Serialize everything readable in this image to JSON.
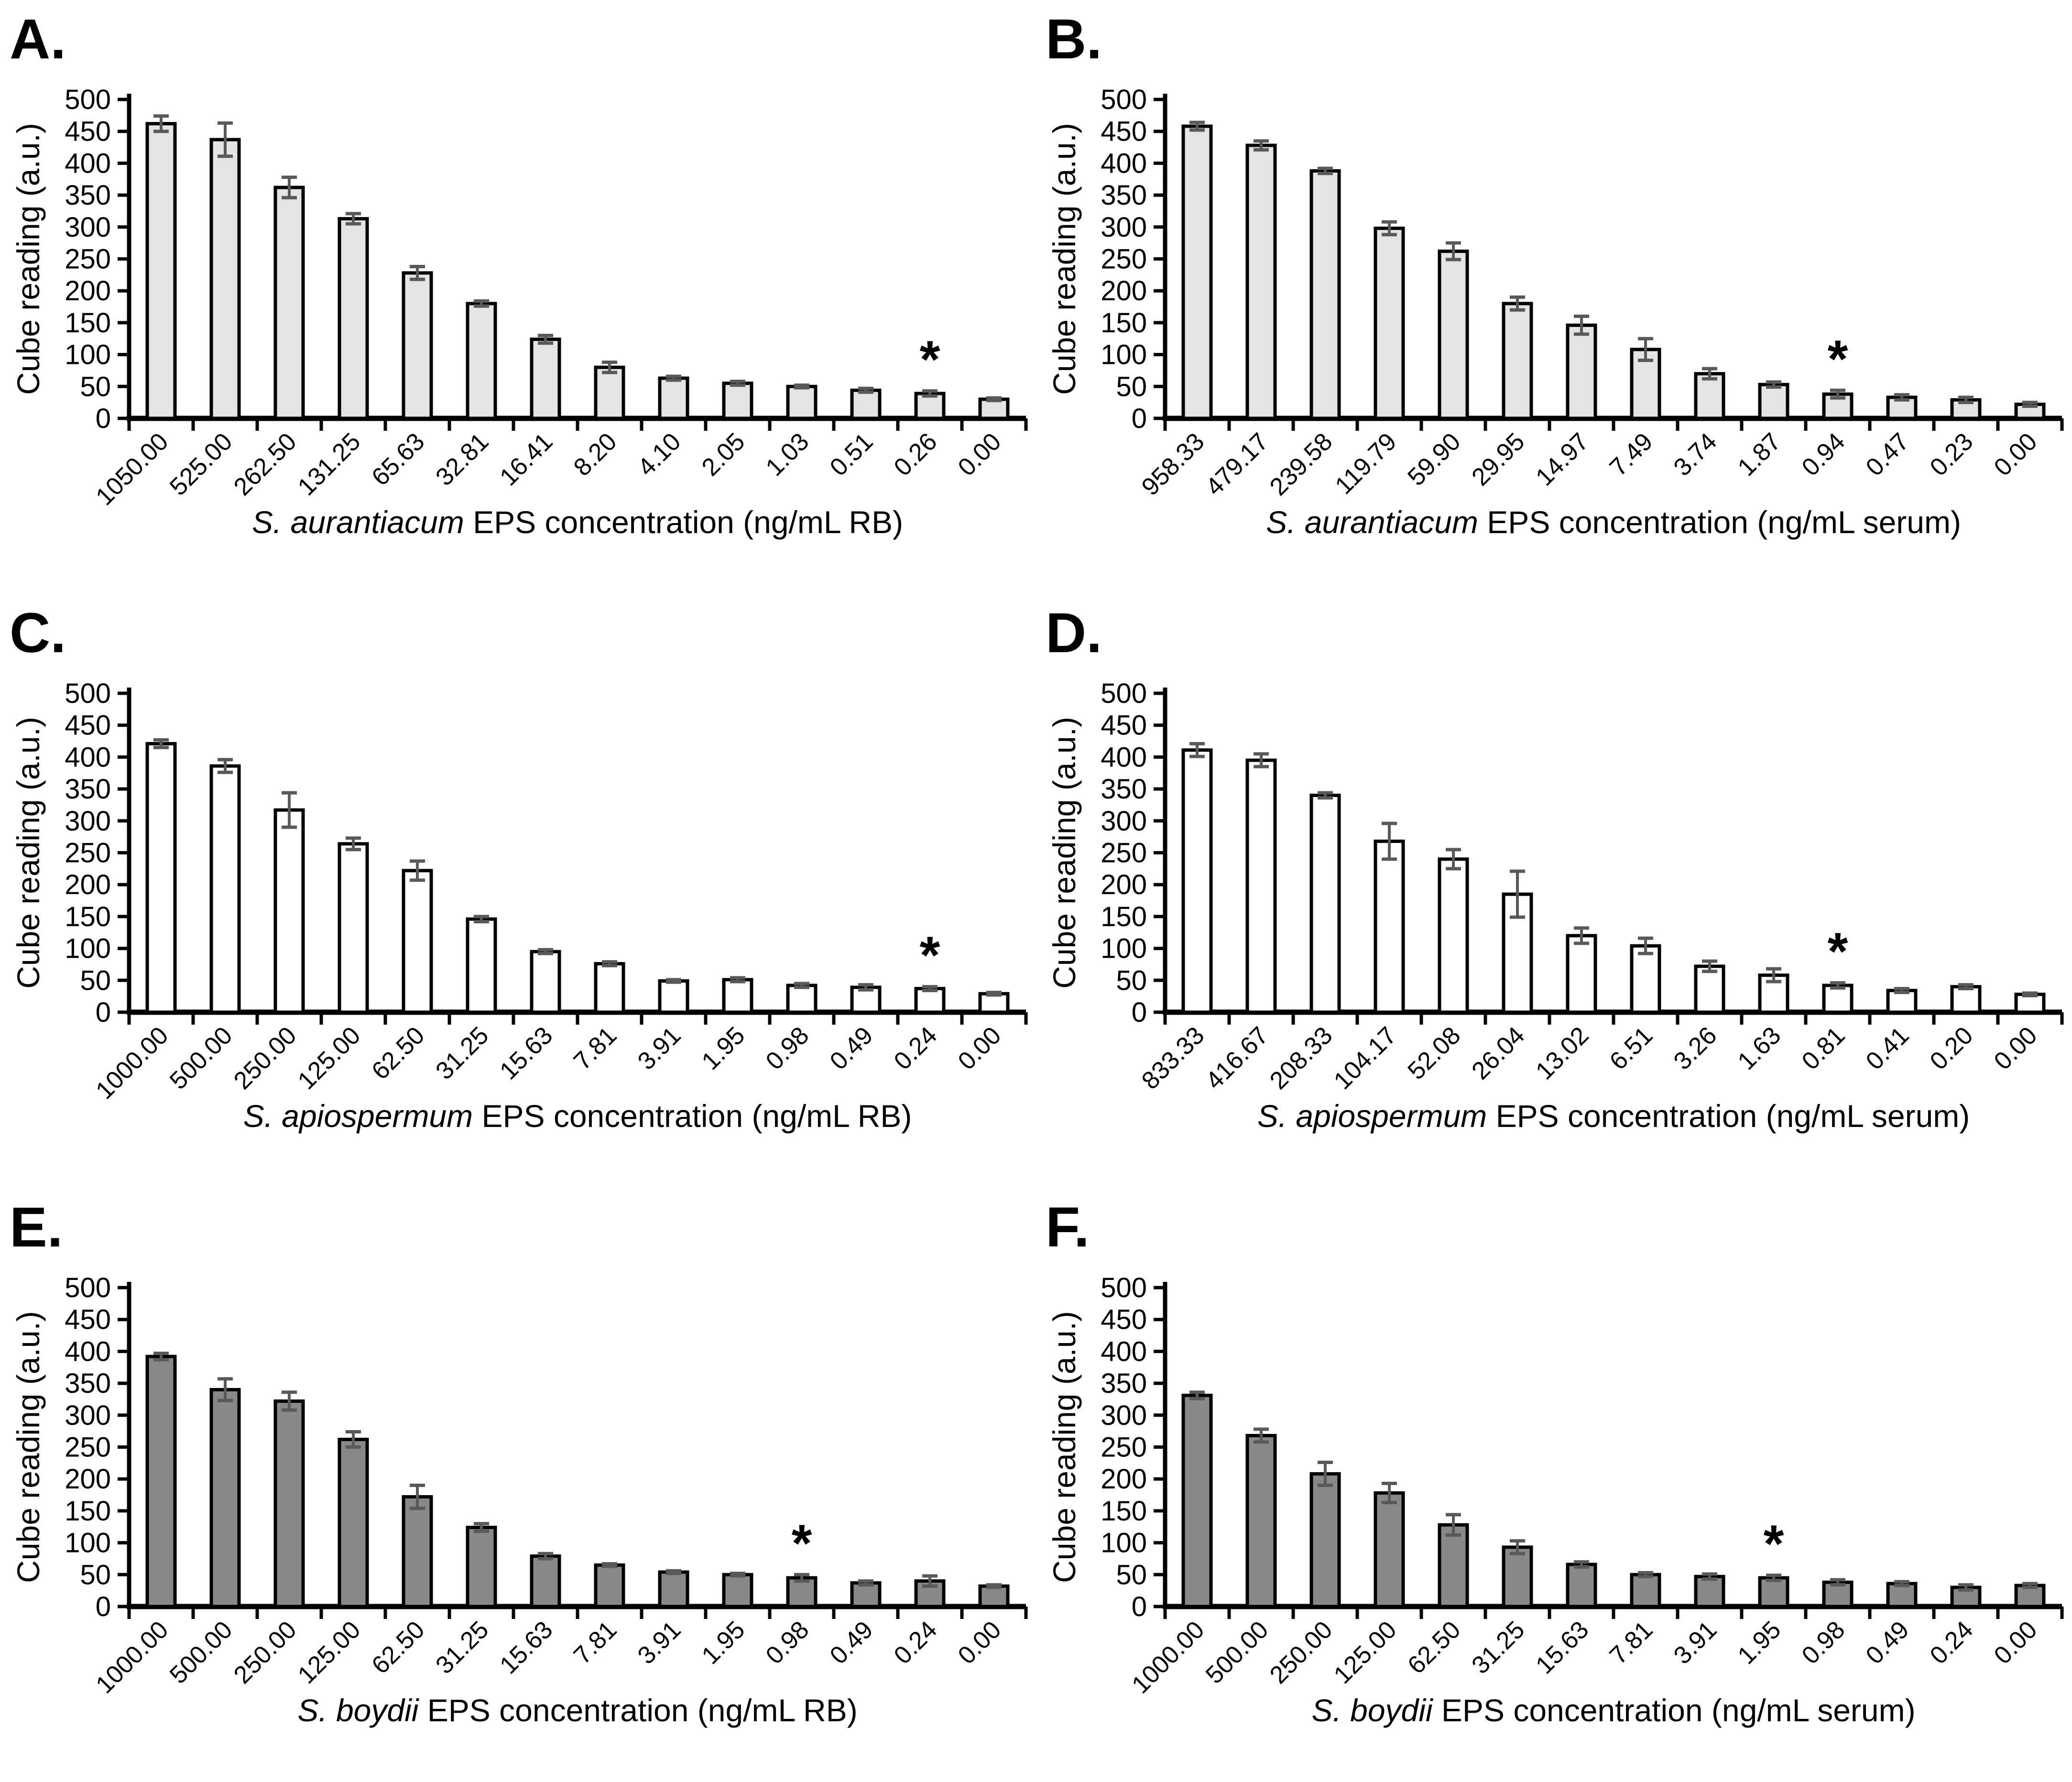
{
  "figure_background": "#ffffff",
  "significance_marker": "*",
  "axis_color": "#000000",
  "error_bar_color": "#595959",
  "chart_data": [
    {
      "panel_letter": "A.",
      "type": "bar",
      "ylabel": "Cube reading (a.u.)",
      "xlabel_species": "S. aurantiacum",
      "xlabel_rest": " EPS concentration (ng/mL RB)",
      "ylim": [
        0,
        500
      ],
      "ytick_step": 50,
      "grid": false,
      "legend": "none",
      "bar_fill": "#e4e4e4",
      "categories": [
        "1050.00",
        "525.00",
        "262.50",
        "131.25",
        "65.63",
        "32.81",
        "16.41",
        "8.20",
        "4.10",
        "2.05",
        "1.03",
        "0.51",
        "0.26",
        "0.00"
      ],
      "values": [
        462,
        437,
        362,
        313,
        228,
        180,
        124,
        80,
        63,
        55,
        50,
        44,
        39,
        30
      ],
      "errors": [
        12,
        26,
        16,
        8,
        10,
        4,
        6,
        8,
        3,
        3,
        2,
        3,
        4,
        2
      ],
      "asterisk_index": 12
    },
    {
      "panel_letter": "B.",
      "type": "bar",
      "ylabel": "Cube reading (a.u.)",
      "xlabel_species": "S. aurantiacum",
      "xlabel_rest": " EPS concentration (ng/mL serum)",
      "ylim": [
        0,
        500
      ],
      "ytick_step": 50,
      "grid": false,
      "legend": "none",
      "bar_fill": "#e4e4e4",
      "categories": [
        "958.33",
        "479.17",
        "239.58",
        "119.79",
        "59.90",
        "29.95",
        "14.97",
        "7.49",
        "3.74",
        "1.87",
        "0.94",
        "0.47",
        "0.23",
        "0.00"
      ],
      "values": [
        458,
        428,
        388,
        298,
        262,
        180,
        146,
        108,
        70,
        53,
        38,
        33,
        29,
        22
      ],
      "errors": [
        6,
        7,
        4,
        10,
        13,
        10,
        14,
        17,
        8,
        4,
        6,
        4,
        4,
        3
      ],
      "asterisk_index": 10
    },
    {
      "panel_letter": "C.",
      "type": "bar",
      "ylabel": "Cube reading (a.u.)",
      "xlabel_species": "S. apiospermum",
      "xlabel_rest": " EPS concentration (ng/mL RB)",
      "ylim": [
        0,
        500
      ],
      "ytick_step": 50,
      "grid": false,
      "legend": "none",
      "bar_fill": "#ffffff",
      "categories": [
        "1000.00",
        "500.00",
        "250.00",
        "125.00",
        "62.50",
        "31.25",
        "15.63",
        "7.81",
        "3.91",
        "1.95",
        "0.98",
        "0.49",
        "0.24",
        "0.00"
      ],
      "values": [
        421,
        386,
        317,
        264,
        222,
        146,
        95,
        76,
        49,
        51,
        42,
        39,
        37,
        29
      ],
      "errors": [
        6,
        10,
        27,
        9,
        15,
        4,
        3,
        3,
        2,
        3,
        3,
        4,
        3,
        2
      ],
      "asterisk_index": 12
    },
    {
      "panel_letter": "D.",
      "type": "bar",
      "ylabel": "Cube reading (a.u.)",
      "xlabel_species": "S. apiospermum",
      "xlabel_rest": " EPS concentration (ng/mL serum)",
      "ylim": [
        0,
        500
      ],
      "ytick_step": 50,
      "grid": false,
      "legend": "none",
      "bar_fill": "#ffffff",
      "categories": [
        "833.33",
        "416.67",
        "208.33",
        "104.17",
        "52.08",
        "26.04",
        "13.02",
        "6.51",
        "3.26",
        "1.63",
        "0.81",
        "0.41",
        "0.20",
        "0.00"
      ],
      "values": [
        411,
        395,
        340,
        268,
        240,
        185,
        120,
        104,
        72,
        58,
        42,
        34,
        40,
        28
      ],
      "errors": [
        10,
        10,
        4,
        28,
        15,
        36,
        12,
        12,
        8,
        10,
        4,
        3,
        3,
        2
      ],
      "asterisk_index": 10
    },
    {
      "panel_letter": "E.",
      "type": "bar",
      "ylabel": "Cube reading (a.u.)",
      "xlabel_species": "S. boydii",
      "xlabel_rest": " EPS concentration (ng/mL RB)",
      "ylim": [
        0,
        500
      ],
      "ytick_step": 50,
      "grid": false,
      "legend": "none",
      "bar_fill": "#888888",
      "categories": [
        "1000.00",
        "500.00",
        "250.00",
        "125.00",
        "62.50",
        "31.25",
        "15.63",
        "7.81",
        "3.91",
        "1.95",
        "0.98",
        "0.49",
        "0.24",
        "0.00"
      ],
      "values": [
        392,
        340,
        322,
        262,
        172,
        124,
        79,
        65,
        54,
        50,
        45,
        37,
        40,
        32
      ],
      "errors": [
        5,
        17,
        14,
        12,
        18,
        6,
        4,
        2,
        2,
        2,
        5,
        3,
        8,
        2
      ],
      "asterisk_index": 10
    },
    {
      "panel_letter": "F.",
      "type": "bar",
      "ylabel": "Cube reading (a.u.)",
      "xlabel_species": "S. boydii",
      "xlabel_rest": " EPS concentration (ng/mL serum)",
      "ylim": [
        0,
        500
      ],
      "ytick_step": 50,
      "grid": false,
      "legend": "none",
      "bar_fill": "#888888",
      "categories": [
        "1000.00",
        "500.00",
        "250.00",
        "125.00",
        "62.50",
        "31.25",
        "15.63",
        "7.81",
        "3.91",
        "1.95",
        "0.98",
        "0.49",
        "0.24",
        "0.00"
      ],
      "values": [
        331,
        268,
        208,
        178,
        128,
        93,
        66,
        50,
        47,
        45,
        38,
        36,
        30,
        33
      ],
      "errors": [
        5,
        10,
        18,
        15,
        16,
        10,
        4,
        3,
        4,
        4,
        4,
        3,
        4,
        3
      ],
      "asterisk_index": 9
    }
  ]
}
